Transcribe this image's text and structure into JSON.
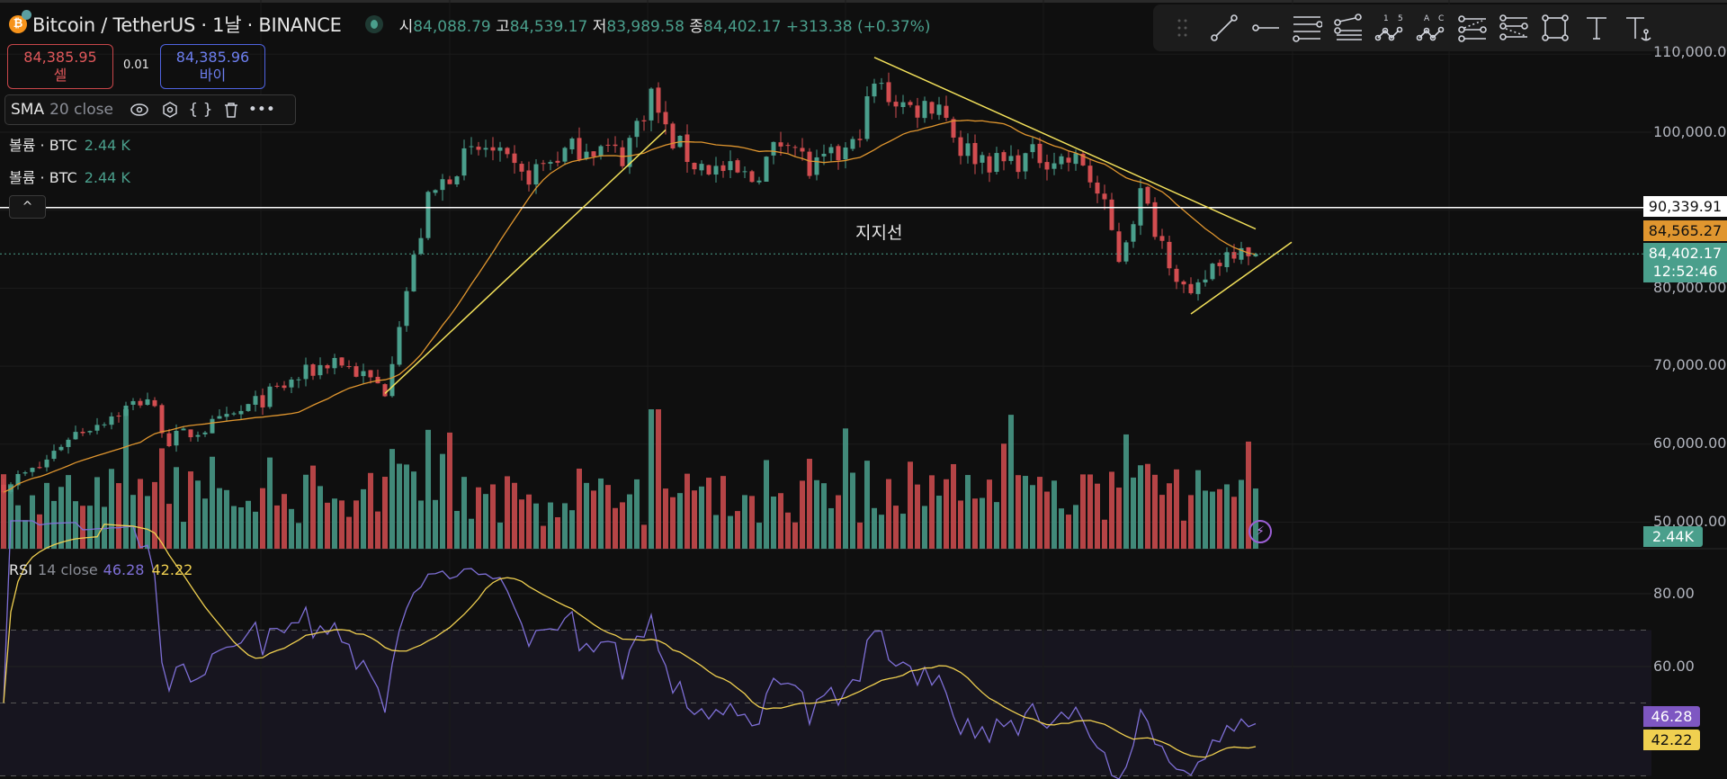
{
  "header": {
    "symbol_icon": "bitcoin-icon",
    "title": "Bitcoin / TetherUS · 1날 · BINANCE",
    "ohlc": [
      {
        "k": "시",
        "v": "84,088.79"
      },
      {
        "k": "고",
        "v": "84,539.17"
      },
      {
        "k": "저",
        "v": "83,989.58"
      },
      {
        "k": "종",
        "v": "84,402.17"
      }
    ],
    "change": "+313.38 (+0.37%)"
  },
  "trade": {
    "sell_price": "84,385.95",
    "sell_label": "셀",
    "spread": "0.01",
    "buy_price": "84,385.96",
    "buy_label": "바이"
  },
  "indicators": {
    "sma_name": "SMA",
    "sma_params": "20 close",
    "volume": [
      {
        "label": "볼륨 · BTC",
        "value": "2.44 K"
      },
      {
        "label": "볼륨 · BTC",
        "value": "2.44 K"
      }
    ],
    "rsi_name": "RSI",
    "rsi_params": "14 close",
    "rsi_value": "46.28",
    "rsi_ma_value": "42.22",
    "collapse": "^"
  },
  "toolbar": [
    "drag-handle",
    "trend-line",
    "horizontal-ray",
    "parallel-channel",
    "fib-retracement",
    "elliott-impulse",
    "elliott-correction",
    "pitchfork",
    "gann-fan",
    "rectangle",
    "text",
    "anchored-text"
  ],
  "price_axis": {
    "ticks": [
      "110,000.00",
      "100,000.00",
      "80,000.00",
      "70,000.00",
      "60,000.00",
      "50,000.00"
    ],
    "horizontal_line_label": "90,339.91",
    "sma_label": "84,565.27",
    "last_price": "84,402.17",
    "countdown": "12:52:46",
    "volume_label": "2.44K"
  },
  "rsi_axis": {
    "ticks": [
      "80.00",
      "60.00"
    ],
    "rsi_label": "46.28",
    "ma_label": "42.22"
  },
  "annotation": "지지선",
  "colors": {
    "up": "#4a9f8c",
    "down": "#d24d50",
    "sma": "#e0962f",
    "rsi": "#7e6fd6",
    "rsi_ma": "#f0d050",
    "drawing": "#f2e05a"
  },
  "chart_data": {
    "type": "candlestick",
    "timeframe": "1D",
    "candles": 175,
    "price_ticks": [
      110000,
      100000,
      90000,
      80000,
      70000,
      60000,
      50000
    ],
    "close_anchors": [
      [
        0,
        54800
      ],
      [
        5,
        57000
      ],
      [
        9,
        61000
      ],
      [
        20,
        66000
      ],
      [
        23,
        60500
      ],
      [
        31,
        63000
      ],
      [
        40,
        68000
      ],
      [
        46,
        71000
      ],
      [
        53,
        67000
      ],
      [
        55,
        76000
      ],
      [
        59,
        91000
      ],
      [
        63,
        96000
      ],
      [
        67,
        98000
      ],
      [
        72,
        94000
      ],
      [
        77,
        97000
      ],
      [
        81,
        98500
      ],
      [
        86,
        97000
      ],
      [
        90,
        105000
      ],
      [
        92,
        100000
      ],
      [
        96,
        96000
      ],
      [
        104,
        94000
      ],
      [
        109,
        100000
      ],
      [
        112,
        95000
      ],
      [
        118,
        98000
      ],
      [
        121,
        106000
      ],
      [
        126,
        103000
      ],
      [
        130,
        104000
      ],
      [
        133,
        98000
      ],
      [
        138,
        96000
      ],
      [
        144,
        97000
      ],
      [
        150,
        96000
      ],
      [
        153,
        90000
      ],
      [
        155,
        84000
      ],
      [
        158,
        92000
      ],
      [
        161,
        86000
      ],
      [
        164,
        80000
      ],
      [
        165,
        78000
      ],
      [
        168,
        83000
      ],
      [
        172,
        86000
      ],
      [
        174,
        84402.17
      ]
    ],
    "last_candle": {
      "open": 84088.79,
      "high": 84539.17,
      "low": 83989.58,
      "close": 84402.17
    },
    "sma_period": 20,
    "rsi_period": 14,
    "rsi_ma_period": 14,
    "horizontal_line": 90339.91,
    "trend_lines": [
      [
        [
          53,
          66500
        ],
        [
          92,
          100300
        ]
      ],
      [
        [
          121,
          109600
        ],
        [
          174,
          87600
        ]
      ],
      [
        [
          165,
          76700
        ],
        [
          179,
          85900
        ]
      ]
    ],
    "rsi_levels": [
      70,
      50,
      30
    ],
    "rsi_ticks": [
      80,
      60
    ]
  }
}
